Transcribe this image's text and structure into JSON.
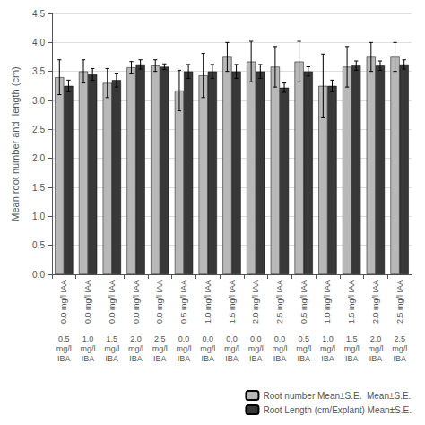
{
  "chart_data": {
    "type": "bar",
    "ylabel": "Mean root number and  length (cm)",
    "categories": [
      "0.0 mg/l IAA",
      "0.0 mg/l IAA",
      "0.0 mg/l IAA",
      "0.0 mg/l IAA",
      "0.0 mg/l IAA",
      "0.5 mg/l IAA",
      "1.0 mg/l IAA",
      "1.5 mg/l IAA",
      "2.0 mg/l IAA",
      "2.5 mg/l IAA",
      "0.5 mg/l IAA",
      "1.0 mg/l IAA",
      "1.5 mg/l IAA",
      "2.0 mg/l IAA",
      "2.5 mg/l IAA"
    ],
    "categories2": [
      "0.5\nmg/l\nIBA",
      "1.0\nmg/l\nIBA",
      "1.5\nmg/l\nIBA",
      "2.0\nmg/l\nIBA",
      "2.5\nmg/l\nIBA",
      "0.0\nmg/l\nIBA",
      "0.0\nmg/l\nIBA",
      "0.0\nmg/l\nIBA",
      "0.0\nmg/l\nIBA",
      "0.0\nmg/l\nIBA",
      "0.5\nmg/l\nIBA",
      "1.0\nmg/l\nIBA",
      "1.5\nmg/l\nIBA",
      "2.0\nmg/l\nIBA",
      "2.5\nmg/l\nIBA"
    ],
    "series": [
      {
        "name": "Root number Mean±S.E.  Mean±S.E.",
        "color": "#b8b8b8",
        "values": [
          3.4,
          3.5,
          3.3,
          3.57,
          3.6,
          3.17,
          3.43,
          3.75,
          3.67,
          3.58,
          3.67,
          3.25,
          3.58,
          3.75,
          3.75
        ],
        "errors": [
          0.3,
          0.2,
          0.25,
          0.1,
          0.1,
          0.35,
          0.38,
          0.25,
          0.35,
          0.35,
          0.35,
          0.55,
          0.35,
          0.25,
          0.25
        ]
      },
      {
        "name": "Root Length (cm/Explant) Mean±S.E.",
        "color": "#383838",
        "values": [
          3.25,
          3.45,
          3.35,
          3.62,
          3.58,
          3.5,
          3.5,
          3.5,
          3.5,
          3.22,
          3.5,
          3.25,
          3.6,
          3.6,
          3.62
        ],
        "errors": [
          0.1,
          0.1,
          0.12,
          0.08,
          0.05,
          0.12,
          0.12,
          0.12,
          0.12,
          0.08,
          0.08,
          0.1,
          0.08,
          0.08,
          0.08
        ]
      }
    ],
    "ylim": [
      0,
      4.5
    ],
    "yticks": [
      {
        "value": 0,
        "label": "0.0"
      },
      0.5,
      {
        "value": 1.0,
        "label": "1.0"
      },
      1.5,
      {
        "value": 2.0,
        "label": "2.0"
      },
      2.5,
      {
        "value": 3.0,
        "label": "3.0"
      },
      3.5,
      {
        "value": 4.0,
        "label": "4.0"
      },
      4.5
    ],
    "grid": true,
    "legend": "lower right"
  }
}
